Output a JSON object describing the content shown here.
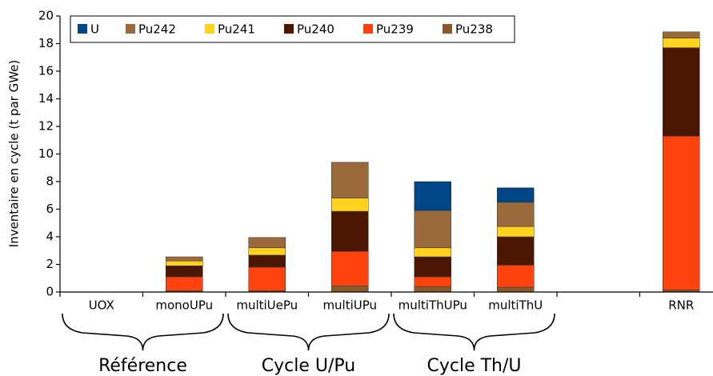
{
  "chart_data": {
    "type": "stacked_bar",
    "y_label": "Inventaire en cycle (t par GWe)",
    "categories": [
      "UOX",
      "monoUPu",
      "multiUePu",
      "multiUPu",
      "multiThUPu",
      "multiThU",
      null,
      "RNR"
    ],
    "series": [
      {
        "name": "U",
        "color": "#004586",
        "values": [
          0,
          0,
          0,
          0,
          2.1,
          1.05,
          0,
          0
        ]
      },
      {
        "name": "Pu242",
        "color": "#9b6a3a",
        "values": [
          0,
          0.3,
          0.75,
          2.6,
          2.7,
          1.75,
          0,
          0.45
        ]
      },
      {
        "name": "Pu241",
        "color": "#ffd320",
        "values": [
          0,
          0.35,
          0.53,
          0.95,
          0.65,
          0.75,
          0,
          0.7
        ]
      },
      {
        "name": "Pu240",
        "color": "#4b1700",
        "values": [
          0,
          0.8,
          0.87,
          2.9,
          1.45,
          2.05,
          0,
          6.4
        ]
      },
      {
        "name": "Pu239",
        "color": "#ff420e",
        "values": [
          0,
          1.0,
          1.7,
          2.5,
          0.7,
          1.6,
          0,
          11.15
        ]
      },
      {
        "name": "Pu238",
        "color": "#8b5a2b",
        "values": [
          0,
          0.1,
          0.1,
          0.45,
          0.4,
          0.35,
          0,
          0.15
        ]
      }
    ],
    "ylim": [
      0,
      20
    ],
    "yticks": [
      0,
      2,
      4,
      6,
      8,
      10,
      12,
      14,
      16,
      18,
      20
    ],
    "groups": [
      "Référence",
      "Cycle U/Pu",
      "Cycle Th/U"
    ],
    "legend": "top-left"
  }
}
